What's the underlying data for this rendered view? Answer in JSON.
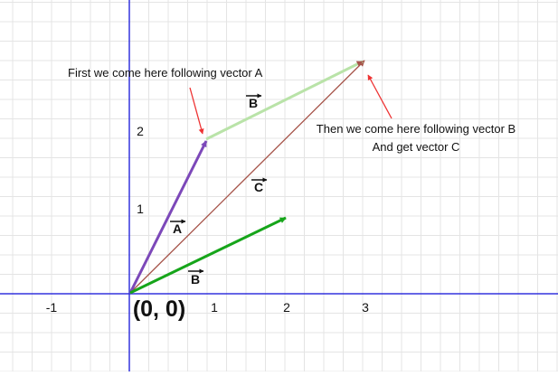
{
  "axes": {
    "x_ticks": [
      "-1",
      "1",
      "2",
      "3"
    ],
    "y_ticks": [
      "1",
      "2"
    ],
    "origin_label": "(0, 0)",
    "axis_color": "#3333dd",
    "grid_color": "#e4e4e4"
  },
  "vectors": {
    "A": {
      "label": "A",
      "color": "#7c48b9"
    },
    "B": {
      "label": "B",
      "color": "#16a51a"
    },
    "B_shifted": {
      "label": "B",
      "color": "#b9e3a8"
    },
    "C": {
      "label": "C",
      "color": "#a6544a"
    }
  },
  "annotations": {
    "first": "First we come here following vector A",
    "then_line1": "Then we come here following vector B",
    "then_line2": "And get vector C",
    "arrow_color": "#ee3333"
  }
}
